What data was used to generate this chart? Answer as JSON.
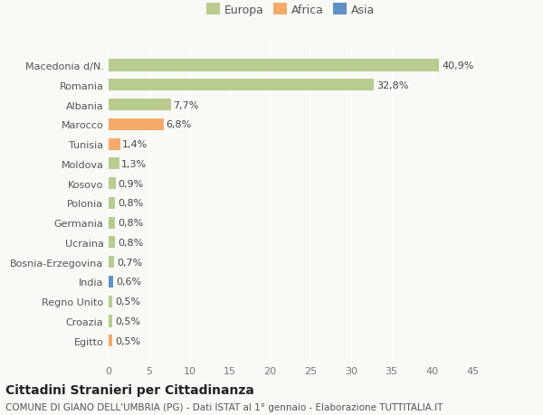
{
  "categories": [
    "Egitto",
    "Croazia",
    "Regno Unito",
    "India",
    "Bosnia-Erzegovina",
    "Ucraina",
    "Germania",
    "Polonia",
    "Kosovo",
    "Moldova",
    "Tunisia",
    "Marocco",
    "Albania",
    "Romania",
    "Macedonia d/N."
  ],
  "values": [
    0.5,
    0.5,
    0.5,
    0.6,
    0.7,
    0.8,
    0.8,
    0.8,
    0.9,
    1.3,
    1.4,
    6.8,
    7.7,
    32.8,
    40.9
  ],
  "labels": [
    "0,5%",
    "0,5%",
    "0,5%",
    "0,6%",
    "0,7%",
    "0,8%",
    "0,8%",
    "0,8%",
    "0,9%",
    "1,3%",
    "1,4%",
    "6,8%",
    "7,7%",
    "32,8%",
    "40,9%"
  ],
  "colors": [
    "#f5aa6a",
    "#b8cc90",
    "#b8cc90",
    "#6090c8",
    "#b8cc90",
    "#b8cc90",
    "#b8cc90",
    "#b8cc90",
    "#b8cc90",
    "#b8cc90",
    "#f5aa6a",
    "#f5aa6a",
    "#b8cc90",
    "#b8cc90",
    "#b8cc90"
  ],
  "legend": [
    {
      "label": "Europa",
      "color": "#b8cc90"
    },
    {
      "label": "Africa",
      "color": "#f5aa6a"
    },
    {
      "label": "Asia",
      "color": "#6090c8"
    }
  ],
  "xlim": [
    0,
    45
  ],
  "xticks": [
    0,
    5,
    10,
    15,
    20,
    25,
    30,
    35,
    40,
    45
  ],
  "title": "Cittadini Stranieri per Cittadinanza",
  "subtitle": "COMUNE DI GIANO DELL'UMBRIA (PG) - Dati ISTAT al 1° gennaio - Elaborazione TUTTITALIA.IT",
  "bg_color": "#f9f9f6",
  "bar_height": 0.6,
  "label_fontsize": 8,
  "ytick_fontsize": 8,
  "xtick_fontsize": 8,
  "title_fontsize": 10,
  "subtitle_fontsize": 7.5
}
